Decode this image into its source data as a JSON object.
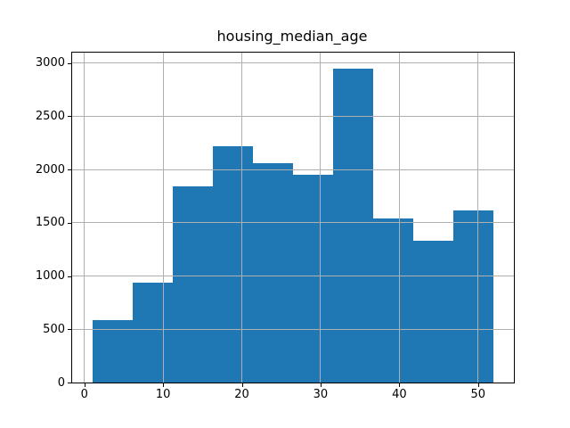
{
  "figure": {
    "background": "#ffffff"
  },
  "chart_data": {
    "type": "bar",
    "subtype": "histogram",
    "title": "housing_median_age",
    "xlabel": "",
    "ylabel": "",
    "bin_edges": [
      1.0,
      6.1,
      11.2,
      16.3,
      21.4,
      26.5,
      31.6,
      36.7,
      41.8,
      46.9,
      52.0
    ],
    "values": [
      590,
      940,
      1840,
      2220,
      2060,
      1950,
      2950,
      1540,
      1330,
      1620
    ],
    "xlim": [
      -1.55,
      54.55
    ],
    "ylim": [
      0,
      3097.5
    ],
    "x_ticks": [
      0,
      10,
      20,
      30,
      40,
      50
    ],
    "y_ticks": [
      0,
      500,
      1000,
      1500,
      2000,
      2500,
      3000
    ],
    "x_tick_labels": [
      "0",
      "10",
      "20",
      "30",
      "40",
      "50"
    ],
    "y_tick_labels": [
      "0",
      "500",
      "1000",
      "1500",
      "2000",
      "2500",
      "3000"
    ],
    "grid": true,
    "grid_above_bars": true,
    "legend_position": "none",
    "colors": {
      "bar_fill": "#1f77b4",
      "grid": "#b0b0b0",
      "spine": "#000000",
      "text": "#000000"
    }
  }
}
